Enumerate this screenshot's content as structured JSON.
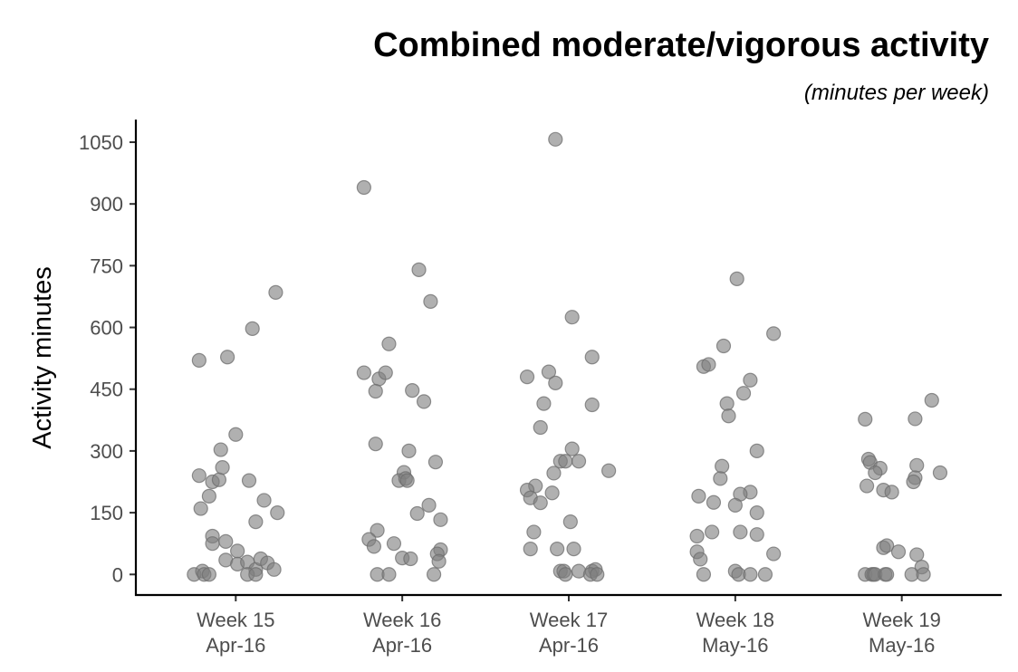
{
  "chart_data": {
    "type": "scatter",
    "title": "Combined moderate/vigorous activity",
    "subtitle": "(minutes per week)",
    "xlabel": "",
    "ylabel": "Activity minutes",
    "ylim": [
      -50,
      1105
    ],
    "yticks": [
      0,
      150,
      300,
      450,
      600,
      750,
      900,
      1050
    ],
    "grid": false,
    "point_color": "#808080",
    "categories": [
      {
        "line1": "Week 15",
        "line2": "Apr-16"
      },
      {
        "line1": "Week 16",
        "line2": "Apr-16"
      },
      {
        "line1": "Week 17",
        "line2": "Apr-16"
      },
      {
        "line1": "Week 18",
        "line2": "May-16"
      },
      {
        "line1": "Week 19",
        "line2": "May-16"
      }
    ],
    "points": [
      {
        "category": 0,
        "jitter": -0.22,
        "y": 520
      },
      {
        "category": 0,
        "jitter": -0.05,
        "y": 528
      },
      {
        "category": 0,
        "jitter": 0.1,
        "y": 597
      },
      {
        "category": 0,
        "jitter": 0.24,
        "y": 685
      },
      {
        "category": 0,
        "jitter": -0.22,
        "y": 240
      },
      {
        "category": 0,
        "jitter": -0.21,
        "y": 160
      },
      {
        "category": 0,
        "jitter": -0.16,
        "y": 190
      },
      {
        "category": 0,
        "jitter": -0.14,
        "y": 225
      },
      {
        "category": 0,
        "jitter": -0.1,
        "y": 230
      },
      {
        "category": 0,
        "jitter": -0.09,
        "y": 303
      },
      {
        "category": 0,
        "jitter": -0.08,
        "y": 260
      },
      {
        "category": 0,
        "jitter": 0.0,
        "y": 340
      },
      {
        "category": 0,
        "jitter": 0.08,
        "y": 228
      },
      {
        "category": 0,
        "jitter": 0.12,
        "y": 128
      },
      {
        "category": 0,
        "jitter": 0.17,
        "y": 180
      },
      {
        "category": 0,
        "jitter": 0.25,
        "y": 150
      },
      {
        "category": 0,
        "jitter": -0.14,
        "y": 93
      },
      {
        "category": 0,
        "jitter": -0.14,
        "y": 75
      },
      {
        "category": 0,
        "jitter": -0.06,
        "y": 80
      },
      {
        "category": 0,
        "jitter": -0.06,
        "y": 35
      },
      {
        "category": 0,
        "jitter": 0.01,
        "y": 57
      },
      {
        "category": 0,
        "jitter": 0.01,
        "y": 25
      },
      {
        "category": 0,
        "jitter": 0.07,
        "y": 30
      },
      {
        "category": 0,
        "jitter": 0.12,
        "y": 12
      },
      {
        "category": 0,
        "jitter": 0.15,
        "y": 38
      },
      {
        "category": 0,
        "jitter": 0.19,
        "y": 28
      },
      {
        "category": 0,
        "jitter": 0.23,
        "y": 12
      },
      {
        "category": 0,
        "jitter": -0.25,
        "y": 0
      },
      {
        "category": 0,
        "jitter": -0.2,
        "y": 8
      },
      {
        "category": 0,
        "jitter": -0.19,
        "y": 0
      },
      {
        "category": 0,
        "jitter": -0.16,
        "y": 0
      },
      {
        "category": 0,
        "jitter": 0.07,
        "y": 0
      },
      {
        "category": 0,
        "jitter": 0.12,
        "y": 0
      },
      {
        "category": 1,
        "jitter": -0.23,
        "y": 940
      },
      {
        "category": 1,
        "jitter": 0.1,
        "y": 740
      },
      {
        "category": 1,
        "jitter": 0.17,
        "y": 663
      },
      {
        "category": 1,
        "jitter": -0.08,
        "y": 560
      },
      {
        "category": 1,
        "jitter": -0.23,
        "y": 490
      },
      {
        "category": 1,
        "jitter": -0.14,
        "y": 475
      },
      {
        "category": 1,
        "jitter": -0.1,
        "y": 490
      },
      {
        "category": 1,
        "jitter": -0.16,
        "y": 445
      },
      {
        "category": 1,
        "jitter": 0.06,
        "y": 447
      },
      {
        "category": 1,
        "jitter": 0.13,
        "y": 420
      },
      {
        "category": 1,
        "jitter": -0.16,
        "y": 317
      },
      {
        "category": 1,
        "jitter": 0.04,
        "y": 300
      },
      {
        "category": 1,
        "jitter": 0.2,
        "y": 273
      },
      {
        "category": 1,
        "jitter": 0.01,
        "y": 248
      },
      {
        "category": 1,
        "jitter": -0.02,
        "y": 228
      },
      {
        "category": 1,
        "jitter": 0.02,
        "y": 233
      },
      {
        "category": 1,
        "jitter": 0.03,
        "y": 228
      },
      {
        "category": 1,
        "jitter": 0.16,
        "y": 168
      },
      {
        "category": 1,
        "jitter": 0.09,
        "y": 148
      },
      {
        "category": 1,
        "jitter": 0.23,
        "y": 133
      },
      {
        "category": 1,
        "jitter": -0.15,
        "y": 107
      },
      {
        "category": 1,
        "jitter": -0.2,
        "y": 85
      },
      {
        "category": 1,
        "jitter": -0.17,
        "y": 68
      },
      {
        "category": 1,
        "jitter": -0.05,
        "y": 75
      },
      {
        "category": 1,
        "jitter": 0.23,
        "y": 60
      },
      {
        "category": 1,
        "jitter": 0.21,
        "y": 50
      },
      {
        "category": 1,
        "jitter": 0.0,
        "y": 40
      },
      {
        "category": 1,
        "jitter": 0.05,
        "y": 38
      },
      {
        "category": 1,
        "jitter": 0.22,
        "y": 32
      },
      {
        "category": 1,
        "jitter": -0.15,
        "y": 0
      },
      {
        "category": 1,
        "jitter": -0.08,
        "y": 0
      },
      {
        "category": 1,
        "jitter": 0.19,
        "y": 0
      },
      {
        "category": 2,
        "jitter": -0.08,
        "y": 1057
      },
      {
        "category": 2,
        "jitter": 0.02,
        "y": 625
      },
      {
        "category": 2,
        "jitter": 0.14,
        "y": 528
      },
      {
        "category": 2,
        "jitter": -0.25,
        "y": 480
      },
      {
        "category": 2,
        "jitter": -0.12,
        "y": 492
      },
      {
        "category": 2,
        "jitter": -0.08,
        "y": 465
      },
      {
        "category": 2,
        "jitter": -0.15,
        "y": 415
      },
      {
        "category": 2,
        "jitter": 0.14,
        "y": 412
      },
      {
        "category": 2,
        "jitter": -0.17,
        "y": 357
      },
      {
        "category": 2,
        "jitter": 0.02,
        "y": 305
      },
      {
        "category": 2,
        "jitter": -0.05,
        "y": 275
      },
      {
        "category": 2,
        "jitter": -0.02,
        "y": 275
      },
      {
        "category": 2,
        "jitter": 0.06,
        "y": 275
      },
      {
        "category": 2,
        "jitter": 0.24,
        "y": 252
      },
      {
        "category": 2,
        "jitter": -0.09,
        "y": 246
      },
      {
        "category": 2,
        "jitter": -0.2,
        "y": 215
      },
      {
        "category": 2,
        "jitter": -0.25,
        "y": 205
      },
      {
        "category": 2,
        "jitter": -0.23,
        "y": 186
      },
      {
        "category": 2,
        "jitter": -0.17,
        "y": 174
      },
      {
        "category": 2,
        "jitter": -0.1,
        "y": 198
      },
      {
        "category": 2,
        "jitter": 0.01,
        "y": 128
      },
      {
        "category": 2,
        "jitter": -0.21,
        "y": 103
      },
      {
        "category": 2,
        "jitter": -0.23,
        "y": 62
      },
      {
        "category": 2,
        "jitter": -0.07,
        "y": 62
      },
      {
        "category": 2,
        "jitter": 0.03,
        "y": 62
      },
      {
        "category": 2,
        "jitter": -0.05,
        "y": 8
      },
      {
        "category": 2,
        "jitter": -0.03,
        "y": 8
      },
      {
        "category": 2,
        "jitter": -0.02,
        "y": 0
      },
      {
        "category": 2,
        "jitter": 0.06,
        "y": 8
      },
      {
        "category": 2,
        "jitter": 0.14,
        "y": 8
      },
      {
        "category": 2,
        "jitter": 0.16,
        "y": 12
      },
      {
        "category": 2,
        "jitter": 0.13,
        "y": 0
      },
      {
        "category": 2,
        "jitter": 0.17,
        "y": 0
      },
      {
        "category": 3,
        "jitter": 0.01,
        "y": 718
      },
      {
        "category": 3,
        "jitter": 0.23,
        "y": 585
      },
      {
        "category": 3,
        "jitter": -0.07,
        "y": 555
      },
      {
        "category": 3,
        "jitter": -0.19,
        "y": 505
      },
      {
        "category": 3,
        "jitter": -0.16,
        "y": 510
      },
      {
        "category": 3,
        "jitter": 0.09,
        "y": 472
      },
      {
        "category": 3,
        "jitter": 0.05,
        "y": 440
      },
      {
        "category": 3,
        "jitter": -0.05,
        "y": 415
      },
      {
        "category": 3,
        "jitter": -0.04,
        "y": 385
      },
      {
        "category": 3,
        "jitter": 0.13,
        "y": 300
      },
      {
        "category": 3,
        "jitter": -0.08,
        "y": 263
      },
      {
        "category": 3,
        "jitter": -0.09,
        "y": 233
      },
      {
        "category": 3,
        "jitter": 0.09,
        "y": 200
      },
      {
        "category": 3,
        "jitter": 0.03,
        "y": 195
      },
      {
        "category": 3,
        "jitter": -0.22,
        "y": 190
      },
      {
        "category": 3,
        "jitter": -0.13,
        "y": 175
      },
      {
        "category": 3,
        "jitter": 0.0,
        "y": 168
      },
      {
        "category": 3,
        "jitter": 0.13,
        "y": 150
      },
      {
        "category": 3,
        "jitter": -0.14,
        "y": 103
      },
      {
        "category": 3,
        "jitter": -0.23,
        "y": 93
      },
      {
        "category": 3,
        "jitter": 0.03,
        "y": 103
      },
      {
        "category": 3,
        "jitter": 0.13,
        "y": 97
      },
      {
        "category": 3,
        "jitter": -0.23,
        "y": 55
      },
      {
        "category": 3,
        "jitter": 0.23,
        "y": 50
      },
      {
        "category": 3,
        "jitter": -0.21,
        "y": 37
      },
      {
        "category": 3,
        "jitter": -0.19,
        "y": 0
      },
      {
        "category": 3,
        "jitter": 0.0,
        "y": 8
      },
      {
        "category": 3,
        "jitter": 0.02,
        "y": 0
      },
      {
        "category": 3,
        "jitter": 0.09,
        "y": 0
      },
      {
        "category": 3,
        "jitter": 0.18,
        "y": 0
      },
      {
        "category": 4,
        "jitter": -0.22,
        "y": 377
      },
      {
        "category": 4,
        "jitter": 0.18,
        "y": 423
      },
      {
        "category": 4,
        "jitter": 0.08,
        "y": 378
      },
      {
        "category": 4,
        "jitter": -0.2,
        "y": 280
      },
      {
        "category": 4,
        "jitter": -0.19,
        "y": 272
      },
      {
        "category": 4,
        "jitter": -0.13,
        "y": 258
      },
      {
        "category": 4,
        "jitter": -0.16,
        "y": 247
      },
      {
        "category": 4,
        "jitter": 0.09,
        "y": 265
      },
      {
        "category": 4,
        "jitter": 0.23,
        "y": 247
      },
      {
        "category": 4,
        "jitter": 0.08,
        "y": 235
      },
      {
        "category": 4,
        "jitter": 0.07,
        "y": 225
      },
      {
        "category": 4,
        "jitter": -0.21,
        "y": 215
      },
      {
        "category": 4,
        "jitter": -0.11,
        "y": 205
      },
      {
        "category": 4,
        "jitter": -0.06,
        "y": 200
      },
      {
        "category": 4,
        "jitter": -0.11,
        "y": 65
      },
      {
        "category": 4,
        "jitter": -0.09,
        "y": 70
      },
      {
        "category": 4,
        "jitter": -0.02,
        "y": 55
      },
      {
        "category": 4,
        "jitter": 0.09,
        "y": 48
      },
      {
        "category": 4,
        "jitter": 0.12,
        "y": 18
      },
      {
        "category": 4,
        "jitter": -0.22,
        "y": 0
      },
      {
        "category": 4,
        "jitter": -0.18,
        "y": 0
      },
      {
        "category": 4,
        "jitter": -0.17,
        "y": 0
      },
      {
        "category": 4,
        "jitter": -0.16,
        "y": 0
      },
      {
        "category": 4,
        "jitter": -0.1,
        "y": 0
      },
      {
        "category": 4,
        "jitter": -0.09,
        "y": 0
      },
      {
        "category": 4,
        "jitter": 0.06,
        "y": 0
      },
      {
        "category": 4,
        "jitter": 0.13,
        "y": 0
      }
    ]
  }
}
